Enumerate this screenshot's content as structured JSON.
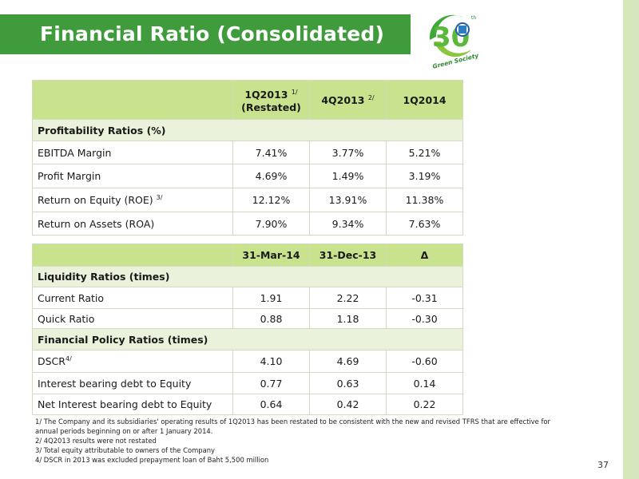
{
  "slide": {
    "title": "Financial Ratio (Consolidated)",
    "page_number": "37"
  },
  "logo": {
    "number": "30",
    "superscript": "th",
    "tagline": "Green Society"
  },
  "table1": {
    "headers": {
      "col1_main": "1Q2013",
      "col1_sup": "1/",
      "col1_sub": "(Restated)",
      "col2_main": "4Q2013",
      "col2_sup": "2/",
      "col3": "1Q2014"
    },
    "section": "Profitability Ratios (%)",
    "rows": [
      {
        "label": "EBITDA Margin",
        "sup": "",
        "v1": "7.41%",
        "v2": "3.77%",
        "v3": "5.21%"
      },
      {
        "label": "Profit Margin",
        "sup": "",
        "v1": "4.69%",
        "v2": "1.49%",
        "v3": "3.19%"
      },
      {
        "label": "Return on Equity (ROE)",
        "sup": "3/",
        "v1": "12.12%",
        "v2": "13.91%",
        "v3": "11.38%"
      },
      {
        "label": "Return on Assets (ROA)",
        "sup": "",
        "v1": "7.90%",
        "v2": "9.34%",
        "v3": "7.63%"
      }
    ]
  },
  "table2": {
    "headers": {
      "col1": "31-Mar-14",
      "col2": "31-Dec-13",
      "col3": "Δ"
    },
    "section_liquidity": "Liquidity Ratios (times)",
    "liquidity_rows": [
      {
        "label": "Current Ratio",
        "sup": "",
        "v1": "1.91",
        "v2": "2.22",
        "v3": "-0.31"
      },
      {
        "label": "Quick Ratio",
        "sup": "",
        "v1": "0.88",
        "v2": "1.18",
        "v3": "-0.30"
      }
    ],
    "section_policy": "Financial Policy Ratios (times)",
    "policy_rows": [
      {
        "label": "DSCR",
        "sup": "4/",
        "v1": "4.10",
        "v2": "4.69",
        "v3": "-0.60"
      },
      {
        "label": "Interest bearing debt to Equity",
        "sup": "",
        "v1": "0.77",
        "v2": "0.63",
        "v3": "0.14"
      },
      {
        "label": "Net Interest bearing debt to Equity",
        "sup": "",
        "v1": "0.64",
        "v2": "0.42",
        "v3": "0.22"
      }
    ]
  },
  "footnotes": [
    "1/ The Company and its subsidiaries' operating results of 1Q2013 has been restated to be consistent with the new and revised TFRS that are effective for",
    "annual periods beginning on or after 1 January 2014.",
    "2/ 4Q2013 results were not restated",
    "3/ Total equity attributable to owners of the Company",
    "4/ DSCR in 2013 was excluded prepayment loan of Baht 5,500 million"
  ],
  "colors": {
    "title_bar": "#3f9b3c",
    "header_fill": "#c8e28d",
    "section_fill": "#eaf2dc",
    "side_strip": "#d6e6bd"
  }
}
